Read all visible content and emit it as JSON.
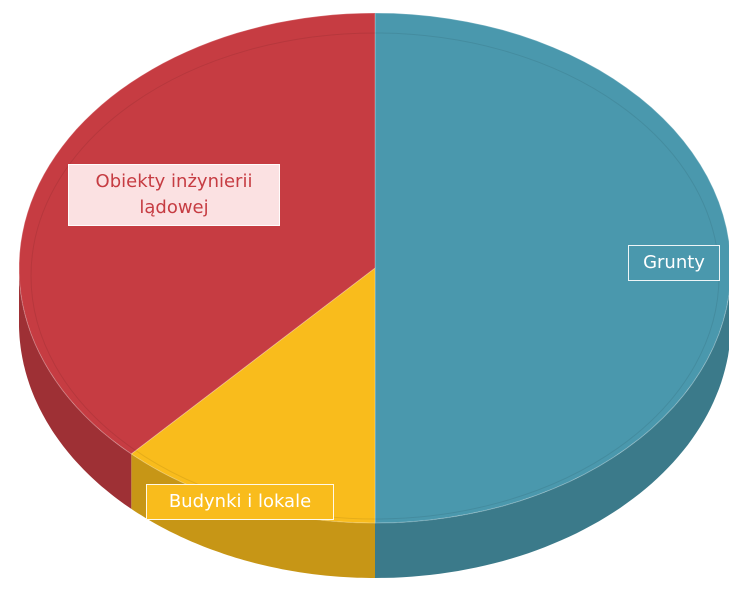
{
  "chart_data": {
    "type": "pie3d",
    "categories": [
      "Grunty",
      "Budynki i lokale",
      "Obiekty inżynierii lądowej"
    ],
    "values": [
      50,
      12,
      38
    ],
    "colors": [
      "#4a98ad",
      "#f9bc1c",
      "#c63c42"
    ]
  }
}
